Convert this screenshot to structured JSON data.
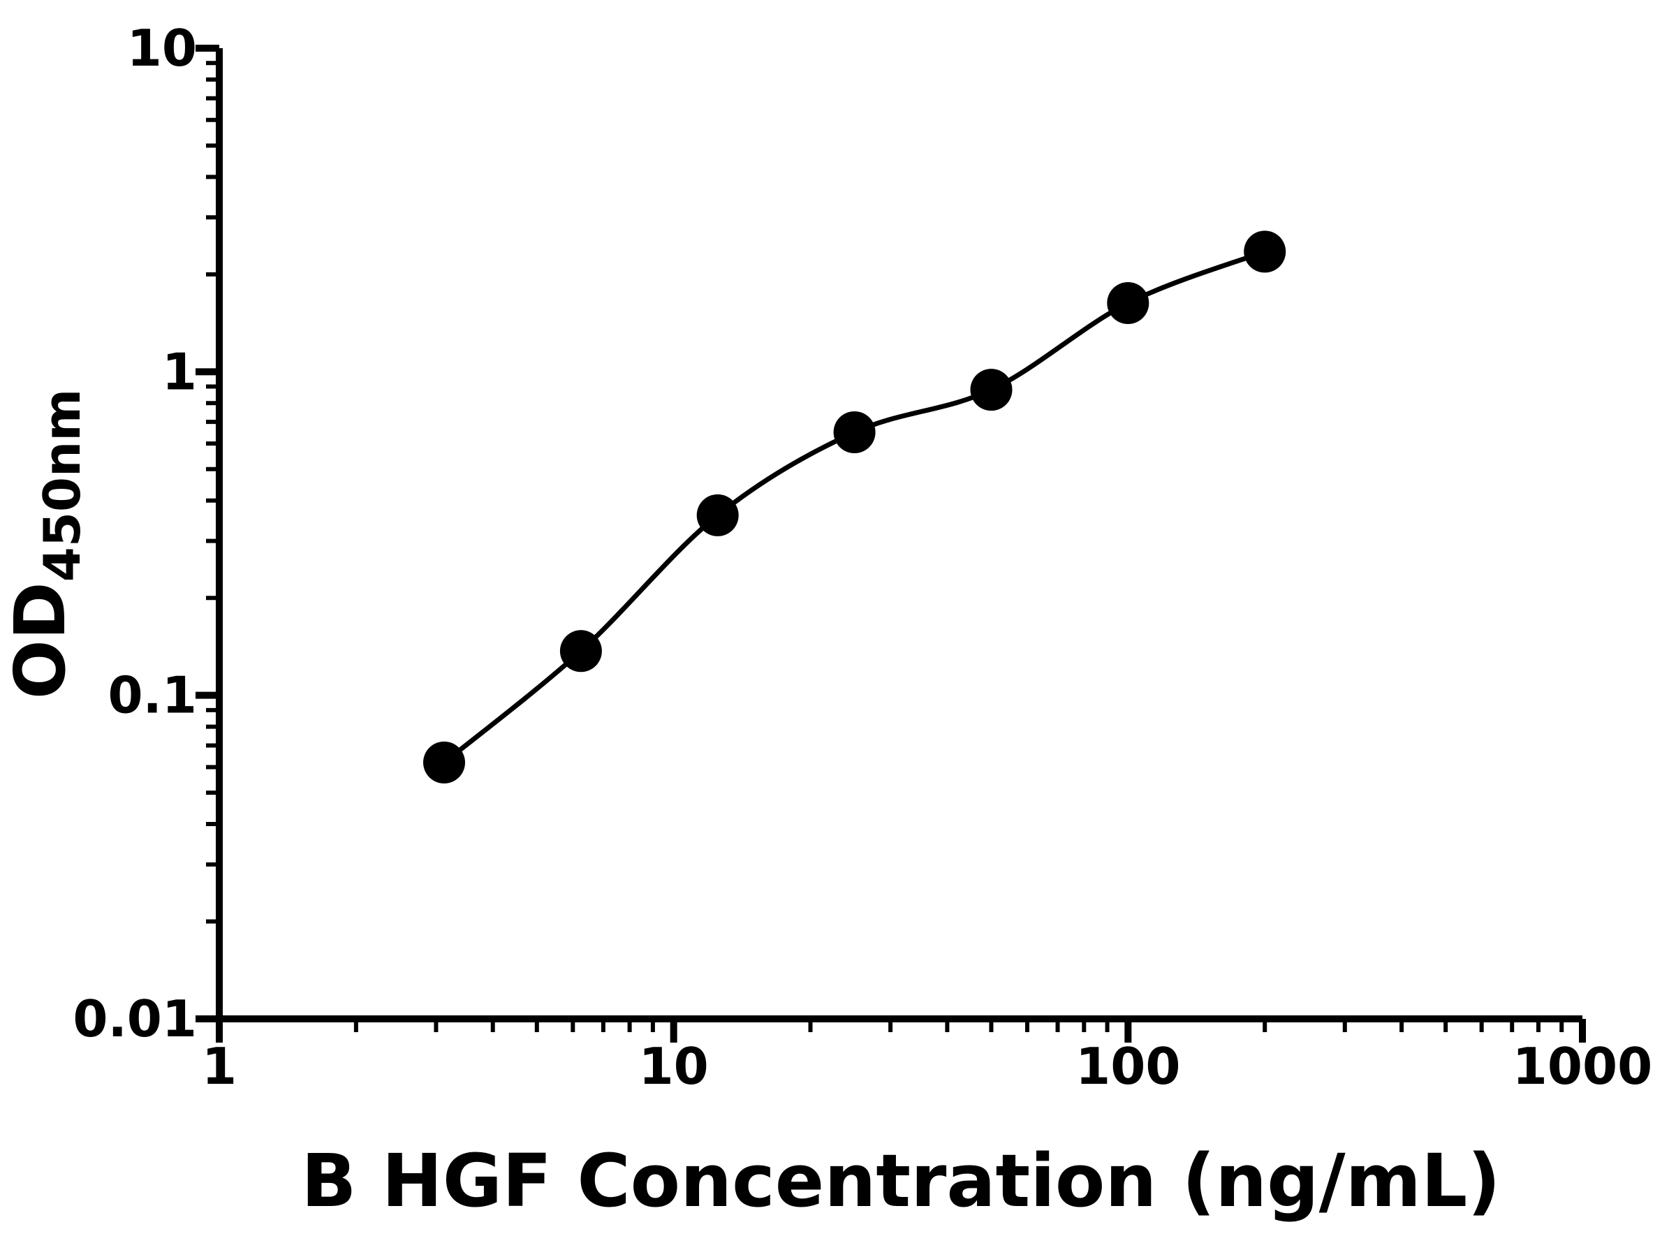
{
  "chart_data": {
    "type": "scatter",
    "title": "",
    "xlabel": "B HGF Concentration (ng/mL)",
    "ylabel_base": "OD",
    "ylabel_sub": "450nm",
    "x_scale": "log",
    "y_scale": "log",
    "xlim": [
      1,
      1000
    ],
    "ylim": [
      0.01,
      10
    ],
    "x_ticks": [
      1,
      10,
      100,
      1000
    ],
    "x_tick_labels": [
      "1",
      "10",
      "100",
      "1000"
    ],
    "y_ticks": [
      0.01,
      0.1,
      1,
      10
    ],
    "y_tick_labels": [
      "0.01",
      "0.1",
      "1",
      "10"
    ],
    "grid": false,
    "legend": null,
    "background_color": "#ffffff",
    "axis_color": "#000000",
    "marker_color": "#000000",
    "line_color": "#000000",
    "fit_line": true,
    "points": {
      "x": [
        3.125,
        6.25,
        12.5,
        25,
        50,
        100,
        200
      ],
      "y": [
        0.062,
        0.137,
        0.36,
        0.65,
        0.88,
        1.63,
        2.35
      ]
    }
  }
}
